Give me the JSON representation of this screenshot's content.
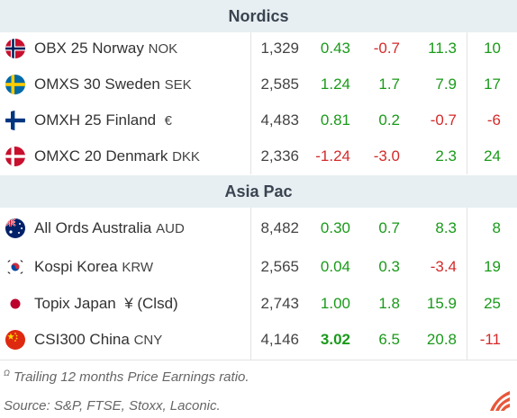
{
  "sections": [
    {
      "title": "Nordics",
      "rows": [
        {
          "flag": "norway-flag-icon",
          "name": "OBX 25 Norway",
          "ccy": "NOK",
          "price": "1,329",
          "d1": "0.43",
          "d2": "-0.7",
          "d3": "11.3",
          "pe": "10"
        },
        {
          "flag": "sweden-flag-icon",
          "name": "OMXS 30 Sweden",
          "ccy": "SEK",
          "price": "2,585",
          "d1": "1.24",
          "d2": "1.7",
          "d3": "7.9",
          "pe": "17"
        },
        {
          "flag": "finland-flag-icon",
          "name": "OMXH 25 Finland",
          "ccy": "€",
          "price": "4,483",
          "d1": "0.81",
          "d2": "0.2",
          "d3": "-0.7",
          "pe": "-6"
        },
        {
          "flag": "denmark-flag-icon",
          "name": "OMXC 20 Denmark",
          "ccy": "DKK",
          "price": "2,336",
          "d1": "-1.24",
          "d2": "-3.0",
          "d3": "2.3",
          "pe": "24"
        }
      ]
    },
    {
      "title": "Asia Pac",
      "rows": [
        {
          "flag": "australia-flag-icon",
          "name": "All Ords Australia",
          "ccy": "AUD",
          "price": "8,482",
          "d1": "0.30",
          "d2": "0.7",
          "d3": "8.3",
          "pe": "8"
        },
        {
          "flag": "korea-flag-icon",
          "name": "Kospi Korea",
          "ccy": "KRW",
          "price": "2,565",
          "d1": "0.04",
          "d2": "0.3",
          "d3": "-3.4",
          "pe": "19"
        },
        {
          "flag": "japan-flag-icon",
          "name": "Topix Japan",
          "ccy": "¥ (Clsd)",
          "price": "2,743",
          "d1": "1.00",
          "d2": "1.8",
          "d3": "15.9",
          "pe": "25"
        },
        {
          "flag": "china-flag-icon",
          "name": "CSI300 China",
          "ccy": "CNY",
          "price": "4,146",
          "d1": "3.02",
          "d2": "6.5",
          "d3": "20.8",
          "pe": "-11"
        }
      ]
    }
  ],
  "footnotes": {
    "pe_marker": "Ω",
    "pe_note": "Trailing 12 months Price Earnings ratio.",
    "source": "Source: S&P, FTSE, Stoxx, Laconic."
  },
  "colors": {
    "positive": "#1a9a1a",
    "negative": "#d42a2a",
    "header_bg": "#e8eff3"
  },
  "logo_icon": "laconic-logo-icon"
}
